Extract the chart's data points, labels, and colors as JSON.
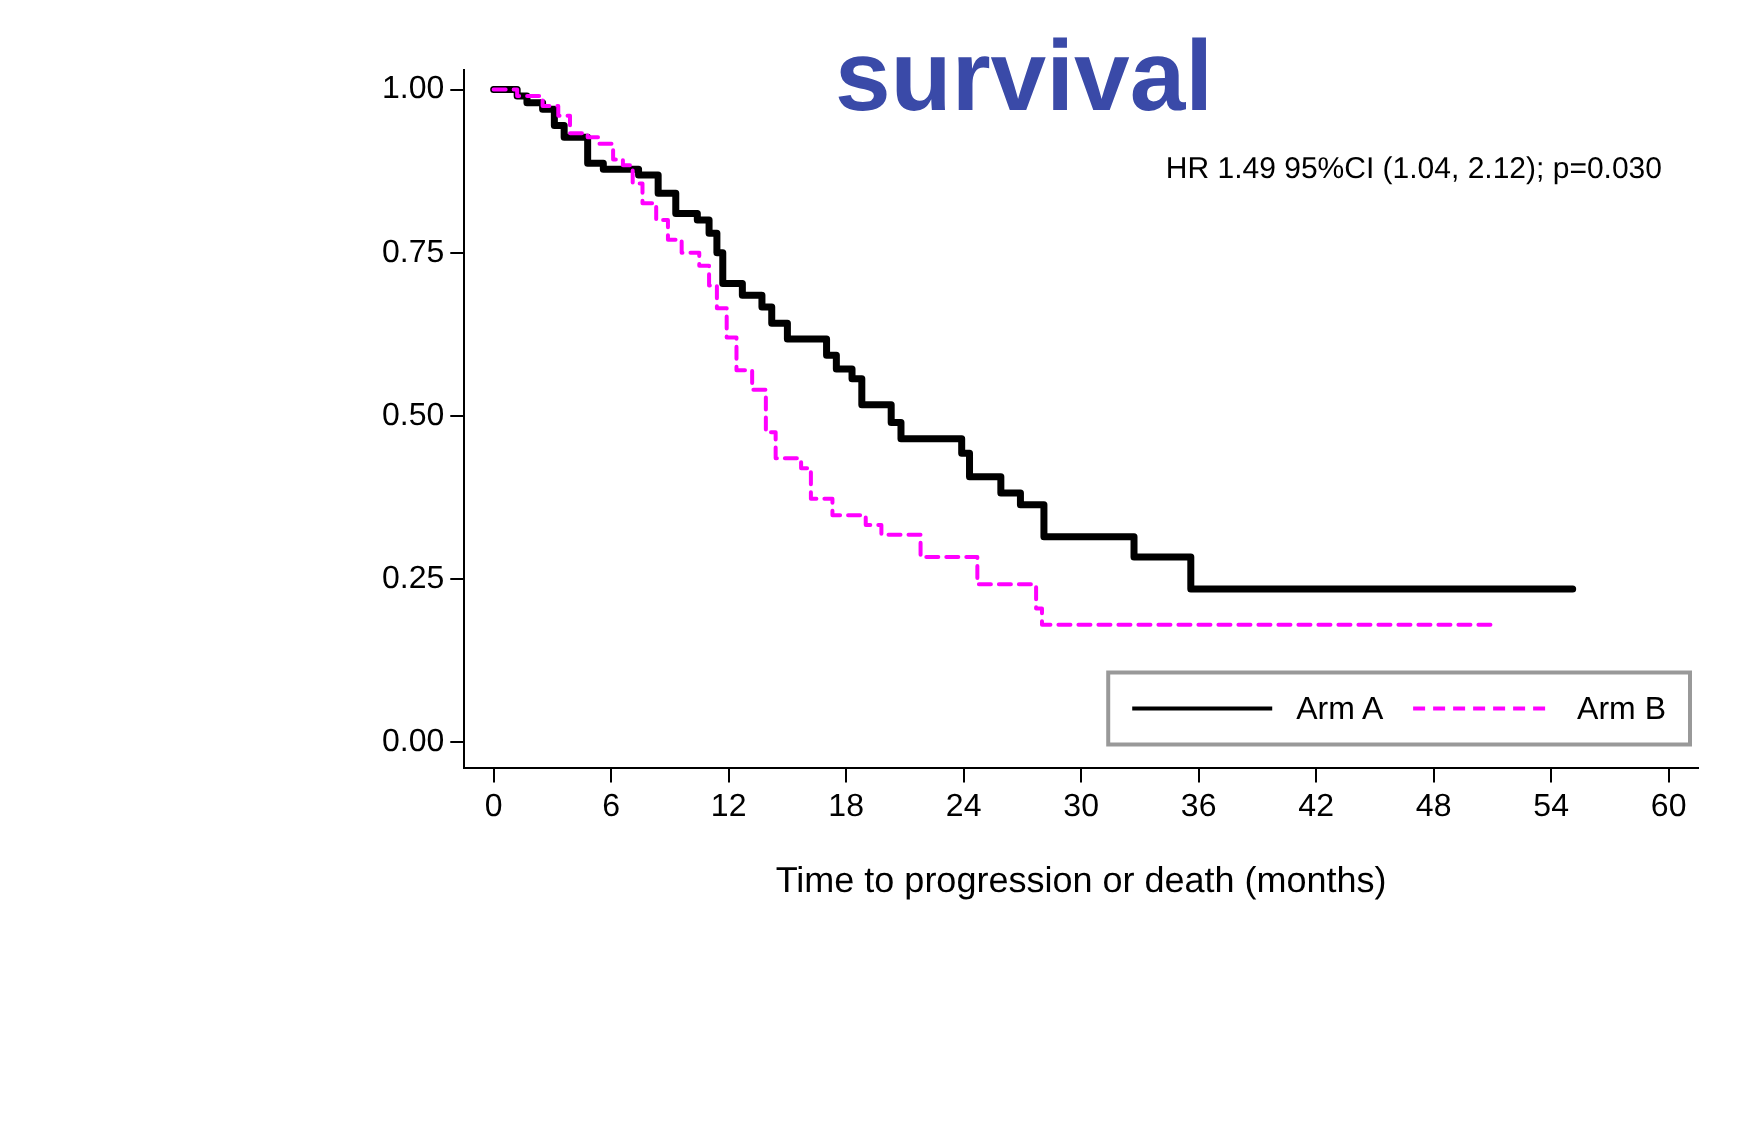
{
  "chart_data": {
    "type": "step",
    "title": "survival",
    "xlabel": "Time to progression or death (months)",
    "annotations": [
      "HR 1.49 95%CI (1.04, 2.12); p=0.030"
    ],
    "xlim": [
      -1.5,
      61.5
    ],
    "xticks": [
      0,
      6,
      12,
      18,
      24,
      30,
      36,
      42,
      48,
      54,
      60
    ],
    "ylim": [
      -0.04,
      1.03
    ],
    "yticks": [
      {
        "value": 0,
        "label": "0.00"
      },
      {
        "value": 0.25,
        "label": "0.25"
      },
      {
        "value": 0.5,
        "label": "0.50"
      },
      {
        "value": 0.75,
        "label": "0.75"
      },
      {
        "value": 1,
        "label": "1.00"
      }
    ],
    "grid": false,
    "legend": "bottom right",
    "marker": "none",
    "series": [
      {
        "name": "Arm A",
        "color": "#000000",
        "line_style": "solid",
        "x": [
          0,
          1.2,
          1.7,
          2.5,
          3.1,
          3.6,
          4.8,
          5.6,
          7.4,
          8.4,
          9.3,
          10.4,
          11,
          11.4,
          11.7,
          12.7,
          13.7,
          14.2,
          15,
          17,
          17.5,
          18.3,
          18.8,
          20.3,
          20.8,
          23.9,
          24.3,
          25.9,
          26.9,
          28.1,
          32.7,
          35.6,
          55.1
        ],
        "values": [
          1,
          0.99,
          0.98,
          0.97,
          0.945,
          0.927,
          0.887,
          0.878,
          0.869,
          0.841,
          0.81,
          0.8,
          0.78,
          0.75,
          0.703,
          0.685,
          0.667,
          0.642,
          0.618,
          0.593,
          0.572,
          0.557,
          0.517,
          0.49,
          0.465,
          0.443,
          0.407,
          0.382,
          0.364,
          0.315,
          0.284,
          0.235,
          0.235
        ]
      },
      {
        "name": "Arm B",
        "color": "#ff00ff",
        "line_style": "dashed",
        "x": [
          0,
          1.2,
          2.5,
          3.3,
          3.9,
          4.8,
          5.4,
          6.1,
          6.6,
          7.1,
          7.6,
          8.3,
          8.9,
          9.6,
          10.5,
          11,
          11.4,
          11.9,
          12.4,
          13.2,
          13.9,
          14.4,
          15.7,
          16.2,
          17.3,
          19,
          19.8,
          21.8,
          24.7,
          27.7,
          28,
          51.3
        ],
        "values": [
          1,
          0.99,
          0.975,
          0.96,
          0.933,
          0.927,
          0.917,
          0.893,
          0.884,
          0.856,
          0.826,
          0.8,
          0.77,
          0.75,
          0.73,
          0.7,
          0.665,
          0.62,
          0.57,
          0.54,
          0.475,
          0.435,
          0.42,
          0.373,
          0.348,
          0.333,
          0.318,
          0.284,
          0.242,
          0.205,
          0.18,
          0.18
        ]
      }
    ]
  }
}
